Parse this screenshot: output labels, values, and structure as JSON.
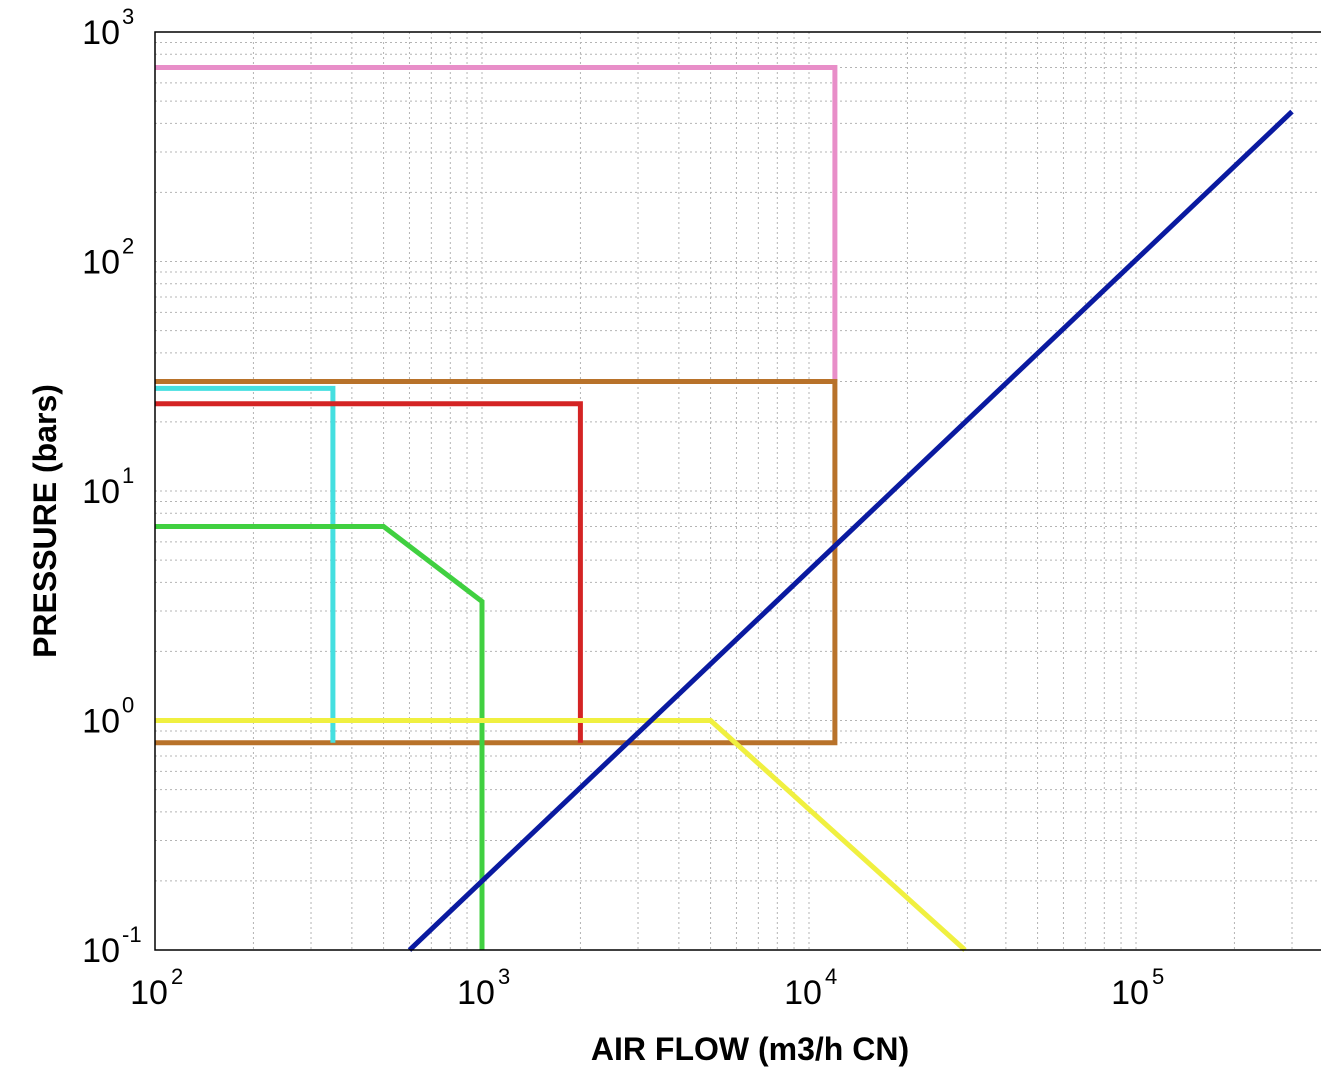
{
  "chart_data": {
    "type": "line",
    "title": "",
    "xlabel": "AIR FLOW (m3/h CN)",
    "ylabel": "PRESSURE (bars)",
    "xscale": "log",
    "yscale": "log",
    "xlim": [
      100,
      400000
    ],
    "ylim": [
      0.1,
      1000
    ],
    "grid": true,
    "legend": "none",
    "x_ticks": [
      {
        "base": "10",
        "exp": "2",
        "value": 100
      },
      {
        "base": "10",
        "exp": "3",
        "value": 1000
      },
      {
        "base": "10",
        "exp": "4",
        "value": 10000
      },
      {
        "base": "10",
        "exp": "5",
        "value": 100000
      }
    ],
    "y_ticks": [
      {
        "base": "10",
        "exp": "-1",
        "value": 0.1
      },
      {
        "base": "10",
        "exp": "0",
        "value": 1
      },
      {
        "base": "10",
        "exp": "1",
        "value": 10
      },
      {
        "base": "10",
        "exp": "2",
        "value": 100
      },
      {
        "base": "10",
        "exp": "3",
        "value": 1000
      }
    ],
    "series": [
      {
        "color": "#e88ec8",
        "points": [
          [
            100,
            700
          ],
          [
            12000,
            700
          ],
          [
            12000,
            30
          ]
        ]
      },
      {
        "color": "#b8722a",
        "points": [
          [
            100,
            30
          ],
          [
            12000,
            30
          ],
          [
            12000,
            0.8
          ],
          [
            100,
            0.8
          ]
        ]
      },
      {
        "color": "#45dfe0",
        "points": [
          [
            100,
            28
          ],
          [
            350,
            28
          ],
          [
            350,
            0.8
          ]
        ]
      },
      {
        "color": "#d42424",
        "points": [
          [
            100,
            24
          ],
          [
            2000,
            24
          ],
          [
            2000,
            0.8
          ]
        ]
      },
      {
        "color": "#40d040",
        "points": [
          [
            100,
            7
          ],
          [
            500,
            7
          ],
          [
            1000,
            3.3
          ],
          [
            1000,
            0.1
          ]
        ]
      },
      {
        "color": "#f0f040",
        "points": [
          [
            100,
            1
          ],
          [
            5000,
            1
          ],
          [
            30000,
            0.1
          ]
        ]
      },
      {
        "color": "#0a1aa0",
        "points": [
          [
            600,
            0.1
          ],
          [
            300000,
            450
          ]
        ]
      }
    ]
  }
}
